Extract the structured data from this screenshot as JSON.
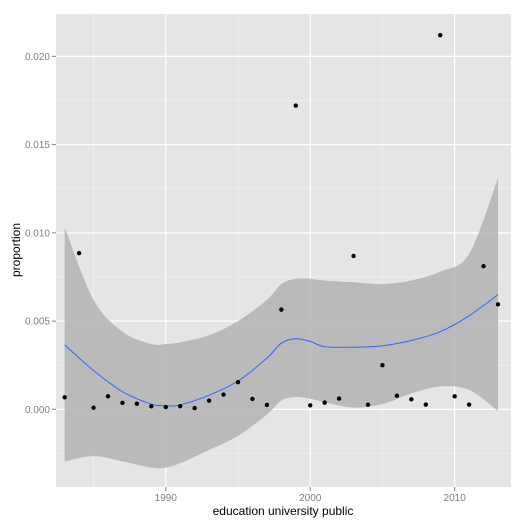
{
  "chart_data": {
    "type": "scatter",
    "title": "",
    "xlabel": "education university public",
    "ylabel": "proportion",
    "xlim": [
      1982.4,
      2013.9
    ],
    "ylim": [
      -0.0044,
      0.0224
    ],
    "x_ticks": [
      1990,
      2000,
      2010
    ],
    "y_ticks": [
      0.0,
      0.005,
      0.01,
      0.015,
      0.02
    ],
    "x_tick_labels": [
      "1990",
      "2000",
      "2010"
    ],
    "y_tick_labels": [
      "0.000",
      "0.005",
      "0.010",
      "0.015",
      "0.020"
    ],
    "grid": true,
    "points": [
      {
        "x": 1983,
        "y": 0.00068
      },
      {
        "x": 1984,
        "y": 0.00885
      },
      {
        "x": 1985,
        "y": 9e-05
      },
      {
        "x": 1986,
        "y": 0.00074
      },
      {
        "x": 1987,
        "y": 0.00037
      },
      {
        "x": 1988,
        "y": 0.00032
      },
      {
        "x": 1989,
        "y": 0.00017
      },
      {
        "x": 1990,
        "y": 0.00013
      },
      {
        "x": 1991,
        "y": 0.00018
      },
      {
        "x": 1992,
        "y": 7e-05
      },
      {
        "x": 1993,
        "y": 0.00049
      },
      {
        "x": 1994,
        "y": 0.00084
      },
      {
        "x": 1995,
        "y": 0.00154
      },
      {
        "x": 1996,
        "y": 0.00059
      },
      {
        "x": 1997,
        "y": 0.00025
      },
      {
        "x": 1998,
        "y": 0.00565
      },
      {
        "x": 1999,
        "y": 0.01721
      },
      {
        "x": 2000,
        "y": 0.00023
      },
      {
        "x": 2001,
        "y": 0.00038
      },
      {
        "x": 2002,
        "y": 0.00061
      },
      {
        "x": 2003,
        "y": 0.00869
      },
      {
        "x": 2004,
        "y": 0.00026
      },
      {
        "x": 2005,
        "y": 0.0025
      },
      {
        "x": 2006,
        "y": 0.00077
      },
      {
        "x": 2007,
        "y": 0.00057
      },
      {
        "x": 2008,
        "y": 0.00027
      },
      {
        "x": 2009,
        "y": 0.0212
      },
      {
        "x": 2010,
        "y": 0.00074
      },
      {
        "x": 2011,
        "y": 0.00027
      },
      {
        "x": 2012,
        "y": 0.00811
      },
      {
        "x": 2013,
        "y": 0.00595
      }
    ],
    "smooth": {
      "x": [
        1983,
        1985,
        1987,
        1989,
        1990,
        1991,
        1993,
        1995,
        1997,
        1998,
        1999,
        2000,
        2001,
        2003,
        2005,
        2007,
        2009,
        2011,
        2013
      ],
      "y": [
        0.00365,
        0.0022,
        0.001,
        0.0003,
        0.0002,
        0.00025,
        0.0008,
        0.0016,
        0.0029,
        0.00375,
        0.004,
        0.00385,
        0.00355,
        0.00352,
        0.0036,
        0.0039,
        0.0044,
        0.0053,
        0.0065
      ],
      "lower": [
        -0.00295,
        -0.00265,
        -0.00295,
        -0.0033,
        -0.0033,
        -0.00305,
        -0.0023,
        -0.0015,
        -0.0003,
        0.0005,
        0.0007,
        0.0006,
        0.0004,
        0.0001,
        0.0003,
        0.0009,
        0.0013,
        0.0011,
        -0.0001
      ],
      "upper": [
        0.0103,
        0.0062,
        0.0044,
        0.0037,
        0.0037,
        0.0038,
        0.0042,
        0.005,
        0.0062,
        0.0071,
        0.0074,
        0.0074,
        0.0073,
        0.0072,
        0.0071,
        0.0073,
        0.0078,
        0.0088,
        0.0131
      ]
    },
    "colors": {
      "panel_background": "#e5e5e5",
      "grid_major": "#ffffff",
      "grid_minor": "#f2f2f2",
      "points": "#000000",
      "smooth_line": "#3366ff",
      "ribbon": "#b3b3b3",
      "tick_text": "#7f7f7f"
    }
  }
}
